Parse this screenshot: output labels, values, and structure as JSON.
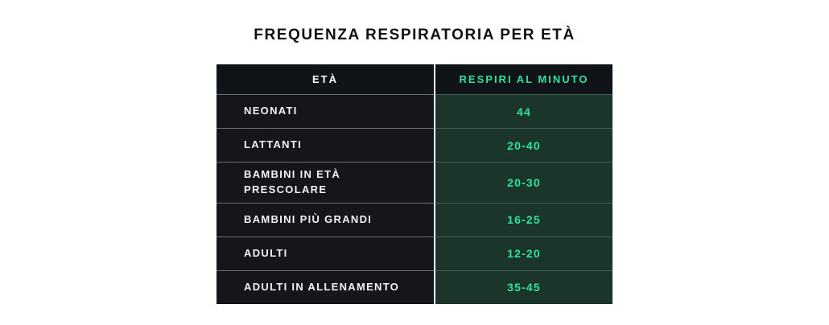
{
  "title": "FREQUENZA RESPIRATORIA PER ETÀ",
  "chart_data": {
    "type": "table",
    "title": "FREQUENZA RESPIRATORIA PER ETÀ",
    "columns": [
      "ETÀ",
      "RESPIRI AL MINUTO"
    ],
    "rows": [
      {
        "label": "NEONATI",
        "value": "44"
      },
      {
        "label": "LATTANTI",
        "value": "20-40"
      },
      {
        "label": "BAMBINI IN ETÀ PRESCOLARE",
        "value": "20-30"
      },
      {
        "label": "BAMBINI PIÙ GRANDI",
        "value": "16-25"
      },
      {
        "label": "ADULTI",
        "value": "12-20"
      },
      {
        "label": "ADULTI IN ALLENAMENTO",
        "value": "35-45"
      }
    ]
  },
  "colors": {
    "accent_green": "#2ee3a2",
    "header_bg": "#101318",
    "label_column_bg": "#14161c",
    "value_column_bg": "#1c352b",
    "title_text": "#0e1116",
    "label_text": "#f2f3f5"
  }
}
